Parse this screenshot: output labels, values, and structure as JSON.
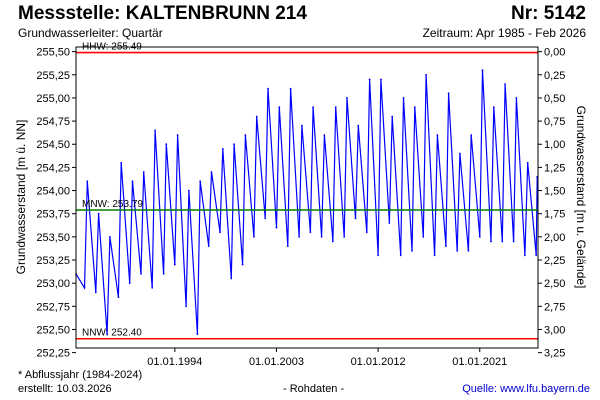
{
  "header": {
    "title": "Messstelle: KALTENBRUNN 214",
    "number": "Nr: 5142",
    "aquifer": "Grundwasserleiter: Quartär",
    "period": "Zeitraum: Apr 1985 - Feb 2026"
  },
  "footer": {
    "note": "* Abflussjahr (1984-2024)",
    "created": "erstellt:  10.03.2026",
    "datatype": "- Rohdaten -",
    "source": "Quelle: www.lfu.bayern.de"
  },
  "colors": {
    "series": "#0000ff",
    "hhw_line": "#ff0000",
    "mnw_line": "#008000",
    "nnw_line": "#ff0000",
    "frame": "#000000",
    "source_link": "#0000cc"
  },
  "chart_data": {
    "type": "line",
    "ylabel_left": "Grundwasserstand [m ü. NN]",
    "ylabel_right": "Grundwasserstand [m u. Gelände]",
    "ylim": [
      252.3,
      255.55
    ],
    "y_ticks": [
      252.25,
      252.5,
      252.75,
      253.0,
      253.25,
      253.5,
      253.75,
      254.0,
      254.25,
      254.5,
      254.75,
      255.0,
      255.25,
      255.5
    ],
    "y_tick_labels": [
      "252,25",
      "252,50",
      "252,75",
      "253,00",
      "253,25",
      "253,50",
      "253,75",
      "254,00",
      "254,25",
      "254,50",
      "254,75",
      "255,00",
      "255,25",
      "255,50"
    ],
    "y2_ticks": [
      0.0,
      0.25,
      0.5,
      0.75,
      1.0,
      1.25,
      1.5,
      1.75,
      2.0,
      2.25,
      2.5,
      2.75,
      3.0,
      3.25
    ],
    "y2_tick_labels": [
      "0,00",
      "0,25",
      "0,50",
      "0,75",
      "1,00",
      "1,25",
      "1,50",
      "1,75",
      "2,00",
      "2,25",
      "2,50",
      "2,75",
      "3,00",
      "3,25"
    ],
    "ground_level": 255.5,
    "xlim": [
      "1985-04-01",
      "2026-02-28"
    ],
    "x_ticks": [
      "1994-01-01",
      "2003-01-01",
      "2012-01-01",
      "2021-01-01"
    ],
    "x_tick_labels": [
      "01.01.1994",
      "01.01.2003",
      "01.01.2012",
      "01.01.2021"
    ],
    "grid": false,
    "reference_lines": [
      {
        "label": "HHW: 255.49",
        "value": 255.49
      },
      {
        "label": "MNW: 253.79",
        "value": 253.79
      },
      {
        "label": "NNW: 252.40",
        "value": 252.4
      }
    ],
    "series": [
      {
        "x": [
          "1985-04",
          "1986-01",
          "1986-04",
          "1987-01",
          "1987-04",
          "1988-01",
          "1988-04",
          "1989-01",
          "1989-04",
          "1990-01",
          "1990-04",
          "1991-01",
          "1991-04",
          "1992-01",
          "1992-04",
          "1993-01",
          "1993-04",
          "1994-01",
          "1994-04",
          "1995-01",
          "1995-04",
          "1996-01",
          "1996-04",
          "1997-01",
          "1997-04",
          "1998-01",
          "1998-04",
          "1999-01",
          "1999-04",
          "2000-01",
          "2000-04",
          "2001-01",
          "2001-04",
          "2002-01",
          "2002-04",
          "2003-01",
          "2003-04",
          "2004-01",
          "2004-04",
          "2005-01",
          "2005-04",
          "2006-01",
          "2006-04",
          "2007-01",
          "2007-04",
          "2008-01",
          "2008-04",
          "2009-01",
          "2009-04",
          "2010-01",
          "2010-04",
          "2011-01",
          "2011-04",
          "2012-01",
          "2012-04",
          "2013-01",
          "2013-04",
          "2014-01",
          "2014-04",
          "2015-01",
          "2015-04",
          "2016-01",
          "2016-04",
          "2017-01",
          "2017-04",
          "2018-01",
          "2018-04",
          "2019-01",
          "2019-04",
          "2020-01",
          "2020-04",
          "2021-01",
          "2021-04",
          "2022-01",
          "2022-04",
          "2023-01",
          "2023-04",
          "2024-01",
          "2024-04",
          "2025-01",
          "2025-04",
          "2026-01",
          "2026-02"
        ],
        "values": [
          253.1,
          252.95,
          254.1,
          252.9,
          253.75,
          252.45,
          253.5,
          252.85,
          254.3,
          253.0,
          254.1,
          253.1,
          254.2,
          252.95,
          254.65,
          253.1,
          254.5,
          253.2,
          254.6,
          252.75,
          254.0,
          252.45,
          254.1,
          253.4,
          254.2,
          253.55,
          254.45,
          253.05,
          254.5,
          253.2,
          254.6,
          253.5,
          254.8,
          253.7,
          255.1,
          253.6,
          254.9,
          253.4,
          255.1,
          253.5,
          254.7,
          253.55,
          254.9,
          253.5,
          254.6,
          253.45,
          254.9,
          253.5,
          255.0,
          253.7,
          254.7,
          253.55,
          255.2,
          253.3,
          255.2,
          253.65,
          254.8,
          253.3,
          255.0,
          253.35,
          254.9,
          253.5,
          255.25,
          253.3,
          254.6,
          253.4,
          255.05,
          253.35,
          254.4,
          253.35,
          254.6,
          253.5,
          255.3,
          253.45,
          254.9,
          253.45,
          255.15,
          253.45,
          255.0,
          253.3,
          254.3,
          253.3,
          254.15
        ]
      }
    ]
  }
}
